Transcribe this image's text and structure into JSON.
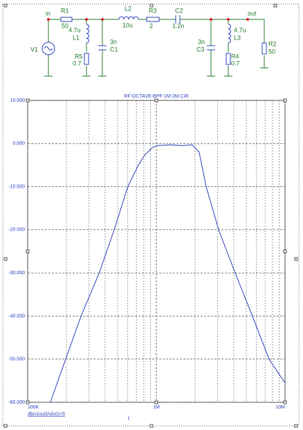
{
  "schematic": {
    "labels": [
      "in",
      "R1",
      "50",
      "4.7u",
      "L1",
      "R5",
      "0.7",
      "3n",
      "C1",
      "L2",
      "10u",
      "R3",
      "2",
      "C2",
      "1.2n",
      "3n",
      "C3",
      "4.7u",
      "L3",
      "R4",
      "0.7",
      "out",
      "R2",
      "50",
      "V1"
    ]
  },
  "chart_data": {
    "type": "line",
    "title": "RF-OCTAVE-BPF-1M-2M.CIR",
    "x_label": "f",
    "y_label": "db(v(out)/v(in))+5",
    "x_scale": "log",
    "grid": true,
    "xlim": [
      100000,
      10000000
    ],
    "xticks": [
      {
        "value": 100000,
        "label": "100K"
      },
      {
        "value": 1000000,
        "label": "1M"
      },
      {
        "value": 10000000,
        "label": "10M"
      }
    ],
    "ylim": [
      -60,
      10
    ],
    "yticks": [
      {
        "value": 10,
        "label": "10.000"
      },
      {
        "value": 0,
        "label": "0.000"
      },
      {
        "value": -10,
        "label": "-10.000"
      },
      {
        "value": -20,
        "label": "-20.000"
      },
      {
        "value": -30,
        "label": "-30.000"
      },
      {
        "value": -40,
        "label": "-40.000"
      },
      {
        "value": -50,
        "label": "-50.000"
      },
      {
        "value": -60,
        "label": "-60.000"
      }
    ],
    "x": [
      150000,
      200000,
      260000,
      360000,
      470000,
      600000,
      725000,
      820000,
      930000,
      1000000,
      1300000,
      1600000,
      1900000,
      2150000,
      2440000,
      3050000,
      4100000,
      5580000,
      7520000,
      10000000
    ],
    "series": [
      {
        "color": "#2a3fbf",
        "values": [
          -60,
          -49.5,
          -40,
          -30,
          -20,
          -10,
          -5,
          -2.5,
          -1,
          -0.5,
          -0.3,
          -0.5,
          -0.3,
          -2,
          -10,
          -20,
          -30,
          -40,
          -50,
          -55.5
        ]
      }
    ]
  }
}
